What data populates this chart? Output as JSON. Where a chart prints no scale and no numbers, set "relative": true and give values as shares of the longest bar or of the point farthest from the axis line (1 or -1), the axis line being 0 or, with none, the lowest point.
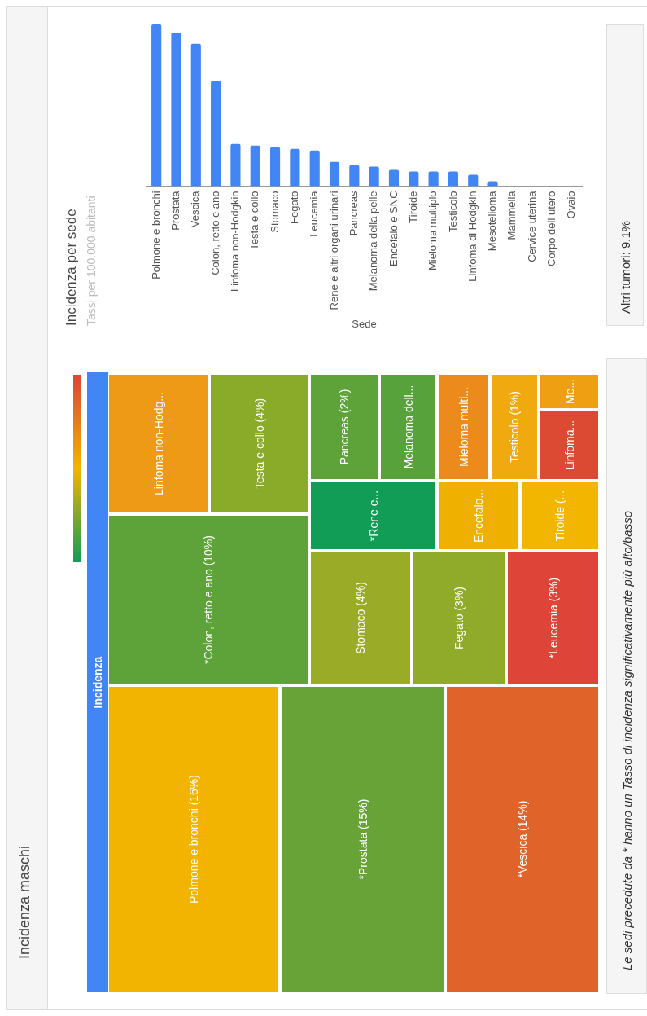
{
  "chart_data": [
    {
      "type": "other",
      "title": "Incidenza maschi",
      "subtitle": "Incidenza",
      "categories": [
        "Polmone e bronchi (16%)",
        "*Prostata (15%)",
        "*Vescica (14%)",
        "*Colon, retto e ano (10%)",
        "Linfoma non-Hodg...",
        "Testa e collo (4%)",
        "Stomaco (4%)",
        "Fegato (3%)",
        "*Leucemia (3%)",
        "*Rene e...",
        "Pancreas (2%)",
        "Melanoma dell...",
        "Encefalo...",
        "Tiroide (...",
        "Mieloma multi...",
        "Testicolo (1%)",
        "Linfoma...",
        "Me..."
      ],
      "colors": [
        "#f2b400",
        "#67a337",
        "#e0632a",
        "#5ea23a",
        "#ee9a16",
        "#8aaa2a",
        "#9aab27",
        "#90aa2a",
        "#de4437",
        "#119d55",
        "#5ea23a",
        "#58a23c",
        "#f0b000",
        "#f2b500",
        "#ec8a1c",
        "#f0aa10",
        "#dd4a34",
        "#eea012"
      ],
      "annotations": [
        "Le sedi precedute da * hanno un Tasso di incidenza significativamente più alto/basso"
      ]
    },
    {
      "type": "bar",
      "relative": true,
      "title": "Incidenza per sede",
      "subtitle": "Tassi per 100.000 abitanti",
      "xlabel": "Sede",
      "color": "#4285f4",
      "categories": [
        "Polmone e bronchi",
        "Prostata",
        "Vescica",
        "Colon, retto e ano",
        "Linfoma non-Hodgkin",
        "Testa e collo",
        "Stomaco",
        "Fegato",
        "Leucemia",
        "Rene e altri organi urinari",
        "Pancreas",
        "Melanoma della pelle",
        "Encefalo e SNC",
        "Tiroide",
        "Mieloma multiplo",
        "Testicolo",
        "Linfoma di Hodgkin",
        "Mesotelioma",
        "Mammella",
        "Cervice uterina",
        "Corpo dell utero",
        "Ovaio"
      ],
      "values": [
        1,
        0.95,
        0.88,
        0.65,
        0.26,
        0.25,
        0.24,
        0.23,
        0.22,
        0.15,
        0.13,
        0.12,
        0.1,
        0.09,
        0.09,
        0.09,
        0.07,
        0.03,
        0,
        0,
        0,
        0
      ],
      "annotations": [
        "Altri tumori: 9.1%"
      ]
    }
  ]
}
